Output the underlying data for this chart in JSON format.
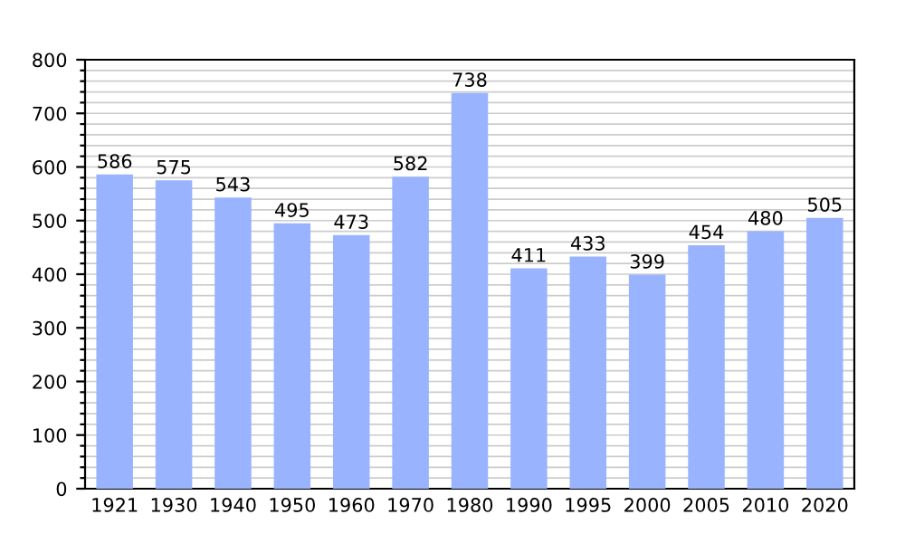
{
  "chart_data": {
    "type": "bar",
    "categories": [
      "1921",
      "1930",
      "1940",
      "1950",
      "1960",
      "1970",
      "1980",
      "1990",
      "1995",
      "2000",
      "2005",
      "2010",
      "2020"
    ],
    "values": [
      586,
      575,
      543,
      495,
      473,
      582,
      738,
      411,
      433,
      399,
      454,
      480,
      505
    ],
    "color": "#99b3ff",
    "data_labels": true,
    "ylim": [
      0,
      800
    ],
    "yticks": [
      0,
      {
        "value": 20,
        "label": null
      },
      {
        "value": 40,
        "label": null
      },
      {
        "value": 60,
        "label": null
      },
      {
        "value": 80,
        "label": null
      },
      100,
      {
        "value": 120,
        "label": null
      },
      {
        "value": 140,
        "label": null
      },
      {
        "value": 160,
        "label": null
      },
      {
        "value": 180,
        "label": null
      },
      200,
      {
        "value": 220,
        "label": null
      },
      {
        "value": 240,
        "label": null
      },
      {
        "value": 260,
        "label": null
      },
      {
        "value": 280,
        "label": null
      },
      300,
      {
        "value": 320,
        "label": null
      },
      {
        "value": 340,
        "label": null
      },
      {
        "value": 360,
        "label": null
      },
      {
        "value": 380,
        "label": null
      },
      400,
      {
        "value": 420,
        "label": null
      },
      {
        "value": 440,
        "label": null
      },
      {
        "value": 460,
        "label": null
      },
      {
        "value": 480,
        "label": null
      },
      500,
      {
        "value": 520,
        "label": null
      },
      {
        "value": 540,
        "label": null
      },
      {
        "value": 560,
        "label": null
      },
      {
        "value": 580,
        "label": null
      },
      600,
      {
        "value": 620,
        "label": null
      },
      {
        "value": 640,
        "label": null
      },
      {
        "value": 660,
        "label": null
      },
      {
        "value": 680,
        "label": null
      },
      700,
      {
        "value": 720,
        "label": null
      },
      {
        "value": 740,
        "label": null
      },
      {
        "value": 760,
        "label": null
      },
      {
        "value": 780,
        "label": null
      },
      800
    ],
    "grid": "y"
  }
}
